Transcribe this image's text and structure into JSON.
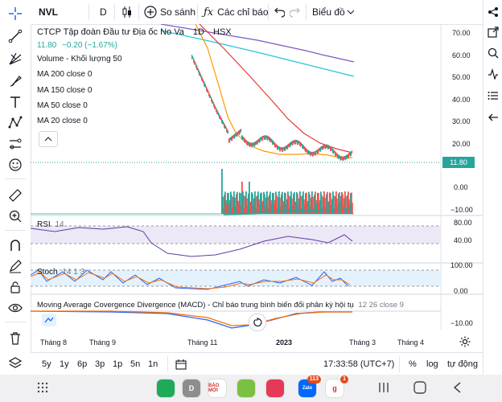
{
  "toolbar": {
    "symbol": "NVL",
    "interval": "D",
    "compare_label": "So sánh",
    "indicators_label": "Các chỉ báo",
    "chart_type_label": "Biểu đồ"
  },
  "legend": {
    "title": "CTCP Tập đoàn Đầu tư Địa ốc No Va",
    "interval": "1D",
    "exchange": "HSX",
    "price": "11.80",
    "change": "−0.20 (−1.67%)",
    "volume": "Volume - Khối lượng",
    "volume_param": "50",
    "ma200": "MA 200 close 0",
    "ma150": "MA 150 close 0",
    "ma50": "MA 50 close 0",
    "ma20": "MA 20 close 0"
  },
  "price_axis": [
    "70.00",
    "60.00",
    "50.00",
    "40.00",
    "30.00",
    "20.00",
    "10.00"
  ],
  "last_price_tag": "11.80",
  "volume_axis": [
    "0.00",
    "−10.00"
  ],
  "rsi": {
    "label": "RSI",
    "param": "14",
    "axis": [
      "80.00",
      "40.00",
      "0.00"
    ]
  },
  "stoch": {
    "label": "Stoch",
    "param": "14 1 3",
    "axis": [
      "100.00",
      "0.00"
    ]
  },
  "macd": {
    "label": "Moving Average Covergence Divergence (MACD) - Chỉ báo trung bình biến đổi phân kỳ hội tụ",
    "param": "12 26 close 9",
    "axis": [
      "−10.00"
    ]
  },
  "time_axis": [
    "Tháng 8",
    "Tháng 9",
    "Tháng 11",
    "2023",
    "Tháng 3",
    "Tháng 4"
  ],
  "bottom": {
    "ranges": [
      "5y",
      "1y",
      "6p",
      "3p",
      "1p",
      "5n",
      "1n"
    ],
    "clock": "17:33:58 (UTC+7)",
    "pct": "%",
    "log": "log",
    "auto": "tự động"
  },
  "colors": {
    "accent": "#2962ff",
    "up": "#26a69a",
    "down": "#ef5350",
    "ma_purple": "#7e57c2",
    "ma_cyan": "#26c6da",
    "ma_red": "#e53935",
    "ma_orange": "#ff9800",
    "rsi_line": "#5c3fa3",
    "stoch_k": "#2962ff",
    "stoch_d": "#ff6d00"
  },
  "nav_apps": [
    {
      "icon": "phone-app-icon",
      "label": "",
      "color": "#1faa59"
    },
    {
      "icon": "contacts-app-icon",
      "label": "D",
      "color": "#8d8d8d"
    },
    {
      "icon": "baomoi-app-icon",
      "label": "BÁO MỚI",
      "color": "#ffffff"
    },
    {
      "icon": "green-check-app-icon",
      "label": "",
      "color": "#7bc043"
    },
    {
      "icon": "camera-app-icon",
      "label": "",
      "color": "#e53957"
    },
    {
      "icon": "zalo-app-icon",
      "label": "Zalo",
      "color": "#0068ff",
      "badge": "113"
    },
    {
      "icon": "g-app-icon",
      "label": "g",
      "color": "#ffffff",
      "badge": "1"
    }
  ]
}
